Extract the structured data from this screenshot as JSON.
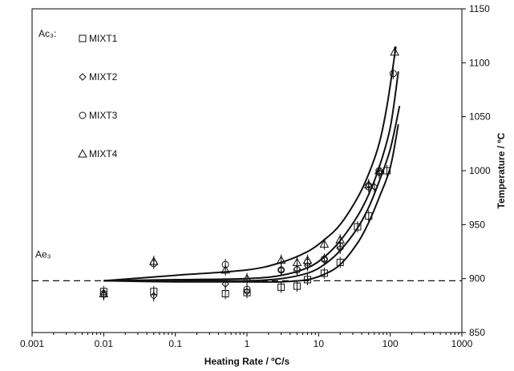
{
  "chart_data": {
    "type": "scatter",
    "xlabel": "Heating Rate / ºC/s",
    "ylabel": "Temperature / ºC",
    "x_scale": "log",
    "xlim": [
      0.001,
      1000
    ],
    "ylim": [
      850,
      1150
    ],
    "x_ticks": [
      {
        "value": 0.001,
        "label": "0.001"
      },
      {
        "value": 0.01,
        "label": "0.01"
      },
      {
        "value": 0.1,
        "label": "0.1"
      },
      {
        "value": 1,
        "label": "1"
      },
      {
        "value": 10,
        "label": "10"
      },
      {
        "value": 100,
        "label": "100"
      },
      {
        "value": 1000,
        "label": "1000"
      }
    ],
    "y_ticks": [
      {
        "value": 850,
        "label": "850"
      },
      {
        "value": 900,
        "label": "900"
      },
      {
        "value": 950,
        "label": "950"
      },
      {
        "value": 1000,
        "label": "1000"
      },
      {
        "value": 1050,
        "label": "1050"
      },
      {
        "value": 1100,
        "label": "1100"
      },
      {
        "value": 1150,
        "label": "1150"
      }
    ],
    "y_axis_side": "right",
    "grid": false,
    "legend_title": "Ac₃:",
    "legend_position": "top-left",
    "reference_line": {
      "label": "Ae₃",
      "y": 898,
      "style": "dashed"
    },
    "series": [
      {
        "name": "MIXT1",
        "marker": "square",
        "points": [
          {
            "x": 0.01,
            "y": 888
          },
          {
            "x": 0.05,
            "y": 888
          },
          {
            "x": 0.5,
            "y": 886
          },
          {
            "x": 1,
            "y": 887
          },
          {
            "x": 3,
            "y": 892
          },
          {
            "x": 5,
            "y": 893
          },
          {
            "x": 7,
            "y": 899
          },
          {
            "x": 12,
            "y": 905
          },
          {
            "x": 20,
            "y": 915
          },
          {
            "x": 35,
            "y": 948
          },
          {
            "x": 50,
            "y": 958
          },
          {
            "x": 90,
            "y": 1000
          }
        ],
        "curve": [
          {
            "x": 0.01,
            "y": 898
          },
          {
            "x": 0.1,
            "y": 897
          },
          {
            "x": 1,
            "y": 897
          },
          {
            "x": 3,
            "y": 897
          },
          {
            "x": 7,
            "y": 899
          },
          {
            "x": 12,
            "y": 904
          },
          {
            "x": 20,
            "y": 913
          },
          {
            "x": 35,
            "y": 933
          },
          {
            "x": 50,
            "y": 952
          },
          {
            "x": 70,
            "y": 975
          },
          {
            "x": 100,
            "y": 1003
          },
          {
            "x": 130,
            "y": 1043
          }
        ]
      },
      {
        "name": "MIXT2",
        "marker": "diamond",
        "points": [
          {
            "x": 0.01,
            "y": 885
          },
          {
            "x": 0.05,
            "y": 884
          },
          {
            "x": 0.5,
            "y": 895
          },
          {
            "x": 1,
            "y": 888
          },
          {
            "x": 3,
            "y": 908
          },
          {
            "x": 5,
            "y": 909
          },
          {
            "x": 7,
            "y": 912
          },
          {
            "x": 12,
            "y": 918
          },
          {
            "x": 20,
            "y": 928
          },
          {
            "x": 50,
            "y": 987
          },
          {
            "x": 60,
            "y": 985
          },
          {
            "x": 70,
            "y": 998
          }
        ],
        "curve": [
          {
            "x": 0.01,
            "y": 898
          },
          {
            "x": 0.1,
            "y": 898
          },
          {
            "x": 1,
            "y": 898
          },
          {
            "x": 3,
            "y": 900
          },
          {
            "x": 7,
            "y": 905
          },
          {
            "x": 12,
            "y": 913
          },
          {
            "x": 20,
            "y": 926
          },
          {
            "x": 35,
            "y": 947
          },
          {
            "x": 50,
            "y": 966
          },
          {
            "x": 70,
            "y": 990
          },
          {
            "x": 100,
            "y": 1020
          },
          {
            "x": 135,
            "y": 1060
          }
        ]
      },
      {
        "name": "MIXT3",
        "marker": "circle",
        "points": [
          {
            "x": 0.01,
            "y": 886
          },
          {
            "x": 0.05,
            "y": 914
          },
          {
            "x": 0.5,
            "y": 913
          },
          {
            "x": 1,
            "y": 890
          },
          {
            "x": 3,
            "y": 908
          },
          {
            "x": 5,
            "y": 908
          },
          {
            "x": 7,
            "y": 915
          },
          {
            "x": 12,
            "y": 918
          },
          {
            "x": 20,
            "y": 930
          },
          {
            "x": 50,
            "y": 985
          },
          {
            "x": 70,
            "y": 1000
          },
          {
            "x": 110,
            "y": 1090
          }
        ],
        "curve": [
          {
            "x": 0.01,
            "y": 898
          },
          {
            "x": 0.1,
            "y": 899
          },
          {
            "x": 1,
            "y": 900
          },
          {
            "x": 3,
            "y": 903
          },
          {
            "x": 7,
            "y": 910
          },
          {
            "x": 12,
            "y": 920
          },
          {
            "x": 20,
            "y": 935
          },
          {
            "x": 35,
            "y": 958
          },
          {
            "x": 50,
            "y": 978
          },
          {
            "x": 70,
            "y": 1003
          },
          {
            "x": 100,
            "y": 1040
          },
          {
            "x": 130,
            "y": 1092
          }
        ]
      },
      {
        "name": "MIXT4",
        "marker": "triangle",
        "points": [
          {
            "x": 0.01,
            "y": 886
          },
          {
            "x": 0.05,
            "y": 916
          },
          {
            "x": 0.5,
            "y": 908
          },
          {
            "x": 1,
            "y": 900
          },
          {
            "x": 3,
            "y": 917
          },
          {
            "x": 5,
            "y": 915
          },
          {
            "x": 7,
            "y": 917
          },
          {
            "x": 12,
            "y": 932
          },
          {
            "x": 20,
            "y": 936
          },
          {
            "x": 50,
            "y": 987
          },
          {
            "x": 70,
            "y": 1000
          },
          {
            "x": 115,
            "y": 1110
          }
        ],
        "curve": [
          {
            "x": 0.01,
            "y": 898
          },
          {
            "x": 0.1,
            "y": 903
          },
          {
            "x": 1,
            "y": 908
          },
          {
            "x": 3,
            "y": 915
          },
          {
            "x": 7,
            "y": 925
          },
          {
            "x": 12,
            "y": 936
          },
          {
            "x": 20,
            "y": 950
          },
          {
            "x": 35,
            "y": 975
          },
          {
            "x": 50,
            "y": 997
          },
          {
            "x": 70,
            "y": 1025
          },
          {
            "x": 90,
            "y": 1060
          },
          {
            "x": 120,
            "y": 1115
          }
        ]
      }
    ]
  }
}
